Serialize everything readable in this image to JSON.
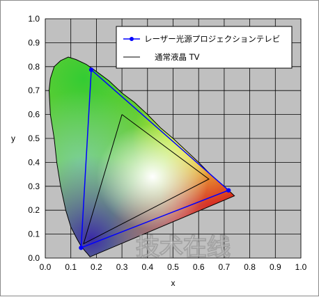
{
  "chart_data": {
    "type": "scatter",
    "xlabel": "x",
    "ylabel": "y",
    "xlim": [
      0.0,
      1.0
    ],
    "ylim": [
      0.0,
      1.0
    ],
    "x_ticks": [
      "0.0",
      "0.1",
      "0.2",
      "0.3",
      "0.4",
      "0.5",
      "0.6",
      "0.7",
      "0.8",
      "0.9",
      "1.0"
    ],
    "y_ticks": [
      "0.0",
      "0.1",
      "0.2",
      "0.3",
      "0.4",
      "0.5",
      "0.6",
      "0.7",
      "0.8",
      "0.9",
      "1.0"
    ],
    "grid": true,
    "legend_position": "top-right",
    "plot_background": "#c0c0c0",
    "series": [
      {
        "name": "レーザー光源プロジェクションテレビ",
        "color": "#0000ff",
        "marker": "circle",
        "points": [
          [
            0.18,
            0.787
          ],
          [
            0.717,
            0.283
          ],
          [
            0.14,
            0.043
          ],
          [
            0.18,
            0.787
          ]
        ]
      },
      {
        "name": "通常液晶 TV",
        "color": "#000000",
        "marker": "none",
        "points": [
          [
            0.3,
            0.6
          ],
          [
            0.64,
            0.33
          ],
          [
            0.15,
            0.06
          ],
          [
            0.3,
            0.6
          ]
        ]
      }
    ],
    "locus": [
      [
        0.175,
        0.005
      ],
      [
        0.165,
        0.018
      ],
      [
        0.155,
        0.03
      ],
      [
        0.14,
        0.05
      ],
      [
        0.124,
        0.08
      ],
      [
        0.1,
        0.13
      ],
      [
        0.08,
        0.2
      ],
      [
        0.06,
        0.3
      ],
      [
        0.045,
        0.4
      ],
      [
        0.035,
        0.5
      ],
      [
        0.02,
        0.6
      ],
      [
        0.015,
        0.7
      ],
      [
        0.02,
        0.75
      ],
      [
        0.035,
        0.8
      ],
      [
        0.06,
        0.825
      ],
      [
        0.09,
        0.84
      ],
      [
        0.12,
        0.83
      ],
      [
        0.16,
        0.81
      ],
      [
        0.2,
        0.78
      ],
      [
        0.25,
        0.74
      ],
      [
        0.3,
        0.69
      ],
      [
        0.35,
        0.65
      ],
      [
        0.4,
        0.6
      ],
      [
        0.45,
        0.545
      ],
      [
        0.5,
        0.5
      ],
      [
        0.55,
        0.45
      ],
      [
        0.6,
        0.4
      ],
      [
        0.65,
        0.345
      ],
      [
        0.7,
        0.3
      ],
      [
        0.735,
        0.265
      ],
      [
        0.74,
        0.26
      ],
      [
        0.175,
        0.005
      ]
    ]
  },
  "watermark": "技术在线"
}
